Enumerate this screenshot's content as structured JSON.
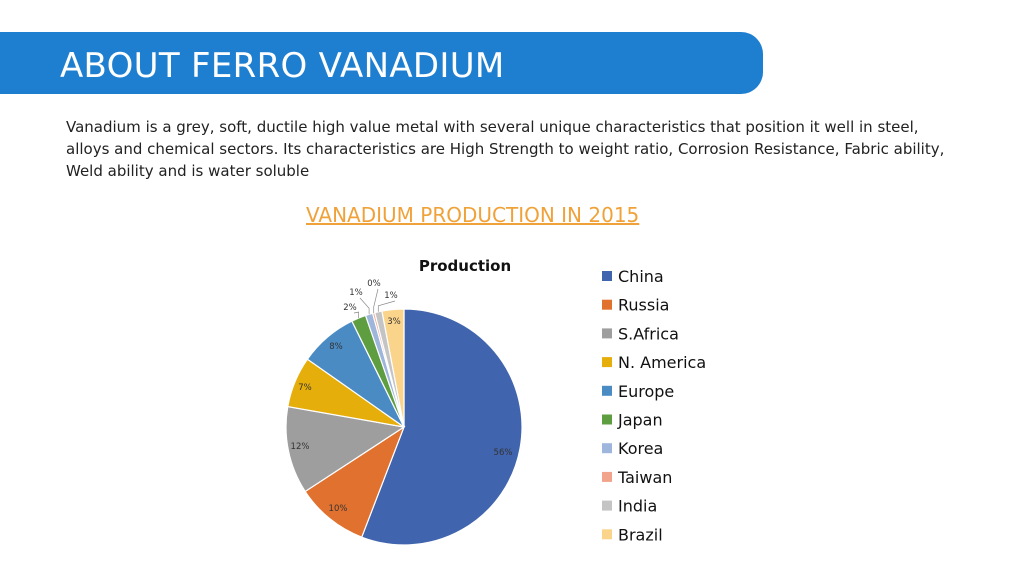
{
  "header": {
    "title": "ABOUT FERRO VANADIUM"
  },
  "description": "Vanadium is a grey, soft, ductile high value metal with several unique characteristics that position it well in steel, alloys and chemical sectors. Its characteristics are High Strength to weight ratio, Corrosion Resistance, Fabric ability, Weld ability and is water soluble",
  "subtitle": "VANADIUM PRODUCTION IN 2015",
  "chart_data": {
    "type": "pie",
    "title": "Production",
    "legend_position": "right",
    "slices": [
      {
        "name": "China",
        "value": 56,
        "label": "56%",
        "color": "#4064ad"
      },
      {
        "name": "Russia",
        "value": 10,
        "label": "10%",
        "color": "#e0712f"
      },
      {
        "name": "S.Africa",
        "value": 12,
        "label": "12%",
        "color": "#9e9e9e"
      },
      {
        "name": "N.  America",
        "value": 7,
        "label": "7%",
        "color": "#e5ae0b"
      },
      {
        "name": "Europe",
        "value": 8,
        "label": "8%",
        "color": "#4b8bc4"
      },
      {
        "name": "Japan",
        "value": 2,
        "label": "2%",
        "color": "#5f9e40"
      },
      {
        "name": "Korea",
        "value": 1,
        "label": "1%",
        "color": "#9eb5dc"
      },
      {
        "name": "Taiwan",
        "value": 0.3,
        "label": "0%",
        "color": "#f1a48b"
      },
      {
        "name": "India",
        "value": 1,
        "label": "1%",
        "color": "#c4c4c4"
      },
      {
        "name": "Brazil",
        "value": 3,
        "label": "3%",
        "color": "#fbd48b"
      }
    ]
  }
}
